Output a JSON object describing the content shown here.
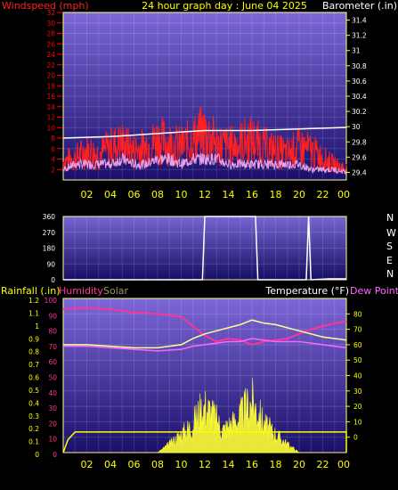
{
  "title": "24 hour graph day : June 04 2025",
  "colors": {
    "wind": "#ff2020",
    "baro": "#ffffff",
    "humidity": "#ff3399",
    "solar": "#ffff33",
    "temp": "#ffff99",
    "dew": "#ff66ff",
    "rain": "#ffff00",
    "dir": "#ffffff",
    "axis_left": "#ff0000",
    "axis_right": "#ffff00"
  },
  "chart_data": [
    {
      "type": "line",
      "id": "wind-baro",
      "left_label": "Windspeed (mph)",
      "right_label": "Barometer (.in)",
      "x_ticks": [
        "02",
        "04",
        "06",
        "08",
        "10",
        "12",
        "14",
        "16",
        "18",
        "20",
        "22",
        "00"
      ],
      "y_left_ticks": [
        2,
        4,
        6,
        8,
        10,
        12,
        14,
        16,
        18,
        20,
        22,
        24,
        26,
        28,
        30,
        32
      ],
      "y_right_ticks": [
        29.4,
        29.6,
        29.8,
        30,
        30.2,
        30.4,
        30.6,
        30.8,
        31,
        31.2,
        31.4
      ],
      "ylim_left": [
        0,
        32
      ],
      "ylim_right": [
        29.3,
        31.5
      ],
      "series": [
        {
          "role": "wind-gust",
          "x": [
            0,
            1,
            2,
            3,
            4,
            5,
            6,
            7,
            8,
            9,
            10,
            11,
            12,
            13,
            14,
            15,
            16,
            17,
            18,
            19,
            20,
            21,
            22,
            23,
            24
          ],
          "values": [
            5,
            6,
            8,
            7,
            9,
            10,
            8,
            9,
            11,
            10,
            9,
            11,
            13,
            10,
            9,
            10,
            11,
            9,
            8,
            7,
            9,
            8,
            6,
            4,
            3
          ]
        },
        {
          "role": "wind-avg",
          "x": [
            0,
            1,
            2,
            3,
            4,
            5,
            6,
            7,
            8,
            9,
            10,
            11,
            12,
            13,
            14,
            15,
            16,
            17,
            18,
            19,
            20,
            21,
            22,
            23,
            24
          ],
          "values": [
            2,
            3,
            3,
            3,
            3,
            4,
            3,
            3,
            4,
            4,
            3,
            4,
            4,
            4,
            3,
            3,
            3,
            3,
            3,
            3,
            3,
            2,
            2,
            2,
            1.5
          ]
        },
        {
          "role": "barometer",
          "x": [
            0,
            2,
            4,
            6,
            8,
            10,
            12,
            14,
            16,
            18,
            20,
            22,
            24
          ],
          "values": [
            29.85,
            29.86,
            29.87,
            29.89,
            29.91,
            29.93,
            29.95,
            29.95,
            29.95,
            29.96,
            29.97,
            29.98,
            29.99
          ]
        }
      ]
    },
    {
      "type": "line",
      "id": "wind-direction",
      "y_ticks": [
        0,
        90,
        180,
        270,
        360
      ],
      "right_labels": [
        "N",
        "W",
        "S",
        "E",
        "N"
      ],
      "ylim": [
        0,
        360
      ],
      "x_ticks": [
        "02",
        "04",
        "06",
        "08",
        "10",
        "12",
        "14",
        "16",
        "18",
        "20",
        "22",
        "00"
      ],
      "series": [
        {
          "role": "direction",
          "x": [
            0,
            11.8,
            12.0,
            16.3,
            16.5,
            20.6,
            20.8,
            21.0,
            22.5,
            24
          ],
          "values": [
            0,
            0,
            360,
            360,
            0,
            0,
            360,
            0,
            5,
            5
          ]
        }
      ]
    },
    {
      "type": "line",
      "id": "rain-hum-solar-temp",
      "left_label": "Rainfall (.in)",
      "humidity_label": "Humidity",
      "solar_label": "Solar",
      "right_label": "Temperature (°F)",
      "dew_label": "Dew Point (",
      "y_rain_ticks": [
        0,
        0.1,
        0.2,
        0.3,
        0.4,
        0.5,
        0.6,
        0.7,
        0.8,
        0.9,
        1,
        1.1,
        1.2
      ],
      "y_hum_ticks": [
        0,
        10,
        20,
        30,
        40,
        50,
        60,
        70,
        80,
        90,
        100
      ],
      "y_temp_ticks": [
        0,
        10,
        20,
        30,
        40,
        50,
        60,
        70,
        80
      ],
      "ylim_temp": [
        -10,
        90
      ],
      "ylim_hum": [
        0,
        100
      ],
      "x_ticks": [
        "02",
        "04",
        "06",
        "08",
        "10",
        "12",
        "14",
        "16",
        "18",
        "20",
        "22",
        "00"
      ],
      "series": [
        {
          "role": "humidity",
          "x": [
            0,
            2,
            4,
            6,
            8,
            10,
            11,
            12,
            13,
            14,
            15,
            16,
            17,
            18,
            19,
            20,
            21,
            22,
            23,
            24
          ],
          "values": [
            93,
            94,
            93,
            91,
            90,
            88,
            82,
            76,
            72,
            74,
            73,
            70,
            72,
            73,
            74,
            77,
            80,
            82,
            84,
            85
          ]
        },
        {
          "role": "temperature",
          "x": [
            0,
            2,
            4,
            6,
            8,
            10,
            11,
            12,
            13,
            14,
            15,
            16,
            17,
            18,
            19,
            20,
            21,
            22,
            23,
            24
          ],
          "values": [
            60,
            60,
            59,
            58,
            58,
            60,
            64,
            67,
            69,
            71,
            73,
            76,
            74,
            73,
            71,
            69,
            67,
            65,
            64,
            63
          ]
        },
        {
          "role": "dewpoint",
          "x": [
            0,
            2,
            4,
            6,
            8,
            10,
            11,
            12,
            13,
            14,
            15,
            16,
            17,
            18,
            19,
            20,
            21,
            22,
            23,
            24
          ],
          "values": [
            59,
            59,
            58,
            57,
            56,
            57,
            59,
            60,
            61,
            62,
            62,
            64,
            63,
            62,
            62,
            62,
            61,
            60,
            59,
            58
          ]
        },
        {
          "role": "rain",
          "x": [
            0,
            0.4,
            0.9,
            1,
            24
          ],
          "values": [
            0,
            0.1,
            0.15,
            0.16,
            0.16
          ]
        },
        {
          "role": "solar-peaks",
          "x": [
            8,
            9,
            10,
            11,
            11.5,
            12,
            12.5,
            13,
            13.5,
            14,
            15,
            15.5,
            16,
            16.5,
            17,
            18,
            19,
            20
          ],
          "values": [
            0,
            8,
            18,
            28,
            40,
            45,
            40,
            32,
            22,
            26,
            35,
            44,
            50,
            40,
            28,
            18,
            8,
            0
          ]
        }
      ]
    }
  ]
}
